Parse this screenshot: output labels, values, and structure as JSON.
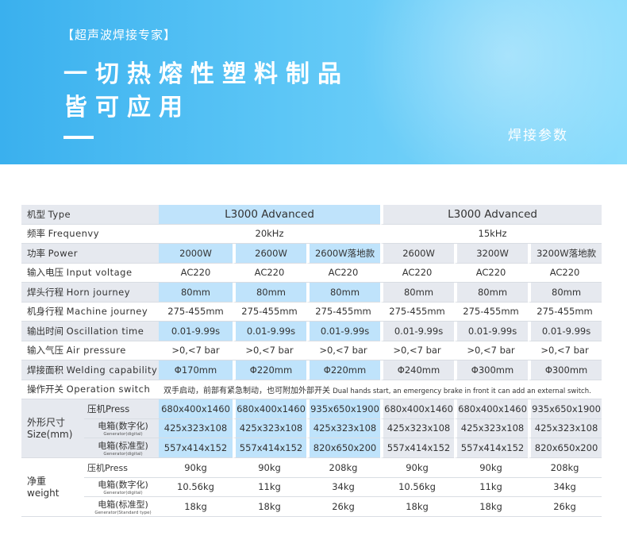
{
  "banner": {
    "tagline": "【超声波焊接专家】",
    "headline_1": "一切热熔性塑料制品",
    "headline_2": "皆可应用",
    "section_title": "焊接参数"
  },
  "table": {
    "type": {
      "label_cn": "机型",
      "label_en": "Type",
      "model_a": "L3000 Advanced",
      "model_b": "L3000 Advanced"
    },
    "frequency": {
      "label_cn": "频率",
      "label_en": "Frequenvy",
      "a": "20kHz",
      "b": "15kHz"
    },
    "power": {
      "label_cn": "功率",
      "label_en": "Power",
      "values": [
        "2000W",
        "2600W",
        "2600W落地款",
        "2600W",
        "3200W",
        "3200W落地款"
      ]
    },
    "voltage": {
      "label_cn": "输入电压",
      "label_en": "Input voltage",
      "values": [
        "AC220",
        "AC220",
        "AC220",
        "AC220",
        "AC220",
        "AC220"
      ]
    },
    "horn": {
      "label_cn": "焊头行程",
      "label_en": "Horn journey",
      "values": [
        "80mm",
        "80mm",
        "80mm",
        "80mm",
        "80mm",
        "80mm"
      ]
    },
    "machine": {
      "label_cn": "机身行程",
      "label_en": "Machine journey",
      "values": [
        "275-455mm",
        "275-455mm",
        "275-455mm",
        "275-455mm",
        "275-455mm",
        "275-455mm"
      ]
    },
    "oscillation": {
      "label_cn": "输出时间",
      "label_en": "Oscillation time",
      "values": [
        "0.01-9.99s",
        "0.01-9.99s",
        "0.01-9.99s",
        "0.01-9.99s",
        "0.01-9.99s",
        "0.01-9.99s"
      ]
    },
    "air": {
      "label_cn": "输入气压",
      "label_en": "Air pressure",
      "values": [
        ">0,<7 bar",
        ">0,<7 bar",
        ">0,<7 bar",
        ">0,<7 bar",
        ">0,<7 bar",
        ">0,<7 bar"
      ]
    },
    "welding": {
      "label_cn": "焊接面积",
      "label_en": "Welding capability",
      "values": [
        "Φ170mm",
        "Φ220mm",
        "Φ220mm",
        "Φ240mm",
        "Φ300mm",
        "Φ300mm"
      ]
    },
    "operation": {
      "label_cn": "操作开关",
      "label_en": "Operation switch",
      "note_cn": "双手启动，前部有紧急制动，也可附加外部开关",
      "note_en": "Dual hands start, an emergency brake in front it can add an external switch."
    },
    "size": {
      "label_cn": "外形尺寸",
      "label_en": "Size(mm)",
      "press": {
        "label": "压机Press",
        "values": [
          "680x400x1460",
          "680x400x1460",
          "935x650x1900",
          "680x400x1460",
          "680x400x1460",
          "935x650x1900"
        ]
      },
      "gen_digital": {
        "label": "电箱(数字化)",
        "sub": "Generator(digital)",
        "values": [
          "425x323x108",
          "425x323x108",
          "425x323x108",
          "425x323x108",
          "425x323x108",
          "425x323x108"
        ]
      },
      "gen_standard": {
        "label": "电箱(标准型)",
        "sub": "Generator(digital)",
        "values": [
          "557x414x152",
          "557x414x152",
          "820x650x200",
          "557x414x152",
          "557x414x152",
          "820x650x200"
        ]
      }
    },
    "weight": {
      "label_cn": "净重",
      "label_en": "weight",
      "press": {
        "label": "压机Press",
        "values": [
          "90kg",
          "90kg",
          "208kg",
          "90kg",
          "90kg",
          "208kg"
        ]
      },
      "gen_digital": {
        "label": "电箱(数字化)",
        "sub": "Generator(digital)",
        "values": [
          "10.56kg",
          "11kg",
          "34kg",
          "10.56kg",
          "11kg",
          "34kg"
        ]
      },
      "gen_standard": {
        "label": "电箱(标准型)",
        "sub": "Generator(Standard type)",
        "values": [
          "18kg",
          "18kg",
          "26kg",
          "18kg",
          "18kg",
          "26kg"
        ]
      }
    }
  }
}
